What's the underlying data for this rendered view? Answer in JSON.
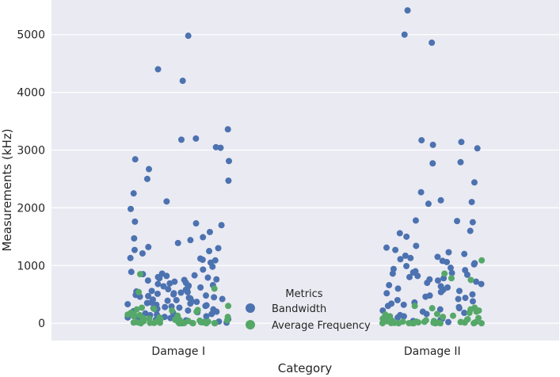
{
  "chart_data": {
    "type": "scatter",
    "subtype": "strip",
    "categories": [
      "Damage I",
      "Damage II"
    ],
    "xlabel": "Category",
    "ylabel": "Measurements (kHz)",
    "ylim": [
      -300,
      5600
    ],
    "yticks": [
      0,
      1000,
      2000,
      3000,
      4000,
      5000
    ],
    "grid": true,
    "legend": {
      "title": "Metrics",
      "position": "bottom-center",
      "entries": [
        "Bandwidth",
        "Average Frequency"
      ]
    },
    "colors": {
      "background": "#eaeaf2",
      "grid": "#ffffff",
      "bandwidth": "#4c72b0",
      "average_frequency": "#55a868"
    },
    "series": [
      {
        "name": "Bandwidth",
        "points": [
          {
            "category": "Damage I",
            "values": [
              4980,
              4400,
              4200,
              3360,
              3200,
              3180,
              3050,
              3040,
              2840,
              2810,
              2670,
              2500,
              2470,
              2250,
              2110,
              1980,
              1760,
              1730,
              1700,
              1580,
              1490,
              1470,
              1440,
              1390,
              1320,
              1300,
              1270,
              1250,
              1210,
              1130,
              1120,
              1100,
              1090,
              1050,
              980,
              930,
              890,
              860,
              850,
              830,
              820,
              800,
              790,
              780,
              760,
              750,
              740,
              720,
              700,
              690,
              680,
              660,
              650,
              640,
              620,
              600,
              590,
              580,
              560,
              550,
              540,
              530,
              520,
              510,
              500,
              490,
              480,
              470,
              460,
              450,
              440,
              430,
              420,
              410,
              400,
              390,
              380,
              370,
              360,
              350,
              340,
              330,
              320,
              310,
              300,
              290,
              280,
              270,
              260,
              250,
              240,
              230,
              220,
              210,
              200,
              190,
              180,
              170,
              160,
              150,
              140,
              130,
              120,
              110,
              100,
              90,
              80,
              70,
              60,
              50,
              40,
              30,
              20,
              10
            ]
          },
          {
            "category": "Damage II",
            "values": [
              5420,
              5000,
              4860,
              3170,
              3140,
              3090,
              3030,
              2790,
              2770,
              2440,
              2270,
              2130,
              2100,
              2070,
              1780,
              1770,
              1750,
              1600,
              1560,
              1500,
              1340,
              1310,
              1270,
              1230,
              1200,
              1170,
              1150,
              1130,
              1110,
              1080,
              1060,
              1040,
              1020,
              990,
              960,
              940,
              920,
              900,
              880,
              870,
              860,
              840,
              820,
              800,
              780,
              760,
              740,
              720,
              700,
              680,
              660,
              640,
              620,
              600,
              580,
              560,
              540,
              520,
              500,
              480,
              460,
              440,
              420,
              400,
              380,
              360,
              340,
              320,
              300,
              280,
              260,
              240,
              220,
              200,
              180,
              160,
              140,
              120,
              100,
              80,
              60,
              40,
              20
            ]
          }
        ]
      },
      {
        "name": "Average Frequency",
        "points": [
          {
            "category": "Damage I",
            "values": [
              850,
              600,
              540,
              300,
              270,
              250,
              240,
              230,
              220,
              200,
              180,
              160,
              150,
              140,
              130,
              120,
              110,
              100,
              90,
              80,
              70,
              60,
              55,
              50,
              45,
              40,
              35,
              30,
              28,
              25,
              22,
              20,
              18,
              15,
              12,
              10,
              8,
              6,
              5,
              4,
              3,
              2,
              1,
              0,
              0,
              0,
              0,
              0,
              0,
              0
            ]
          },
          {
            "category": "Damage II",
            "values": [
              1090,
              860,
              780,
              750,
              300,
              270,
              260,
              240,
              220,
              200,
              180,
              160,
              150,
              130,
              120,
              110,
              100,
              90,
              80,
              70,
              60,
              55,
              50,
              45,
              40,
              35,
              30,
              28,
              25,
              22,
              20,
              18,
              15,
              12,
              10,
              8,
              6,
              5,
              4,
              3,
              2,
              1,
              0,
              0,
              0,
              0,
              0,
              0,
              0,
              0
            ]
          }
        ]
      }
    ]
  }
}
